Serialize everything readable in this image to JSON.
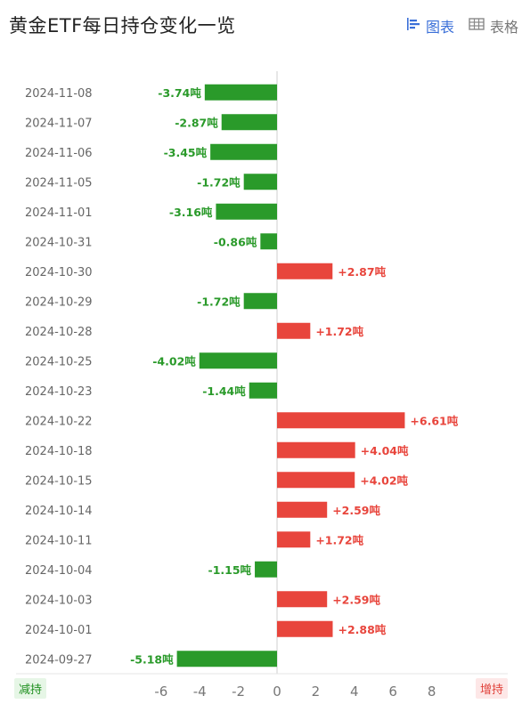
{
  "header": {
    "title": "黄金ETF每日持仓变化一览",
    "tabs": [
      {
        "label": "图表",
        "icon": "bar-chart-icon",
        "active": true
      },
      {
        "label": "表格",
        "icon": "table-icon",
        "active": false
      }
    ]
  },
  "legend_labels": {
    "decrease": "减持",
    "increase": "增持"
  },
  "colors": {
    "positive": "#e8453c",
    "negative": "#2a9a2a",
    "tab_active": "#3a6fd8"
  },
  "chart_data": {
    "type": "bar",
    "orientation": "horizontal",
    "title": "黄金ETF每日持仓变化一览",
    "unit": "吨",
    "xlim": [
      -6.7,
      8.6
    ],
    "x_ticks": [
      -6,
      -4,
      -2,
      0,
      2,
      4,
      6,
      8
    ],
    "categories": [
      "2024-11-08",
      "2024-11-07",
      "2024-11-06",
      "2024-11-05",
      "2024-11-01",
      "2024-10-31",
      "2024-10-30",
      "2024-10-29",
      "2024-10-28",
      "2024-10-25",
      "2024-10-23",
      "2024-10-22",
      "2024-10-18",
      "2024-10-15",
      "2024-10-14",
      "2024-10-11",
      "2024-10-04",
      "2024-10-03",
      "2024-10-01",
      "2024-09-27"
    ],
    "values": [
      -3.74,
      -2.87,
      -3.45,
      -1.72,
      -3.16,
      -0.86,
      2.87,
      -1.72,
      1.72,
      -4.02,
      -1.44,
      6.61,
      4.04,
      4.02,
      2.59,
      1.72,
      -1.15,
      2.59,
      2.88,
      -5.18
    ],
    "data_labels": [
      "-3.74吨",
      "-2.87吨",
      "-3.45吨",
      "-1.72吨",
      "-3.16吨",
      "-0.86吨",
      "+2.87吨",
      "-1.72吨",
      "+1.72吨",
      "-4.02吨",
      "-1.44吨",
      "+6.61吨",
      "+4.04吨",
      "+4.02吨",
      "+2.59吨",
      "+1.72吨",
      "-1.15吨",
      "+2.59吨",
      "+2.88吨",
      "-5.18吨"
    ]
  }
}
